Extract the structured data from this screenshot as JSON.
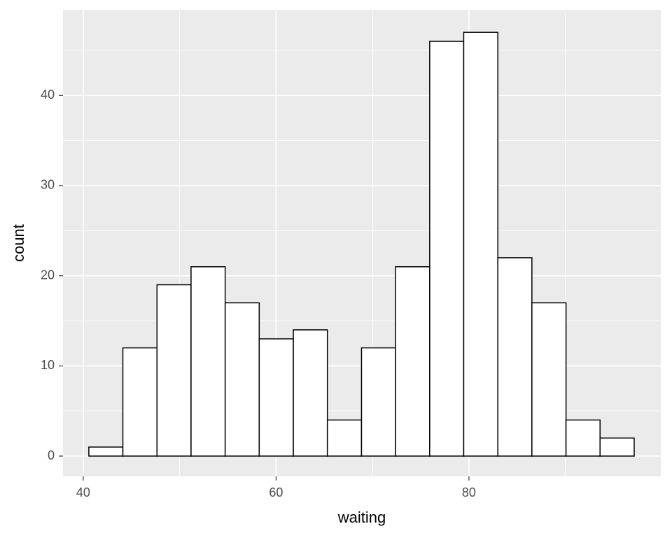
{
  "chart_data": {
    "type": "histogram",
    "x_label": "waiting",
    "y_label": "count",
    "bins": [
      40.58,
      44.11,
      47.65,
      51.18,
      54.72,
      58.25,
      61.79,
      65.32,
      68.86,
      72.39,
      75.93,
      79.46,
      83.0,
      86.53,
      90.07,
      93.6,
      97.14
    ],
    "values": [
      1,
      12,
      19,
      21,
      17,
      13,
      14,
      4,
      12,
      21,
      46,
      47,
      22,
      17,
      4,
      2
    ],
    "color": "#ffffff",
    "edge_color": "#000000",
    "xlim": [
      37.9,
      99.9
    ],
    "xticks": [
      40,
      60,
      80
    ],
    "xminor": [
      50,
      70,
      90
    ],
    "ylim": [
      -2.25,
      49.5
    ],
    "yticks": [
      0,
      10,
      20,
      30,
      40
    ],
    "yminor": [
      5,
      15,
      25,
      35,
      45
    ],
    "grid": true
  }
}
